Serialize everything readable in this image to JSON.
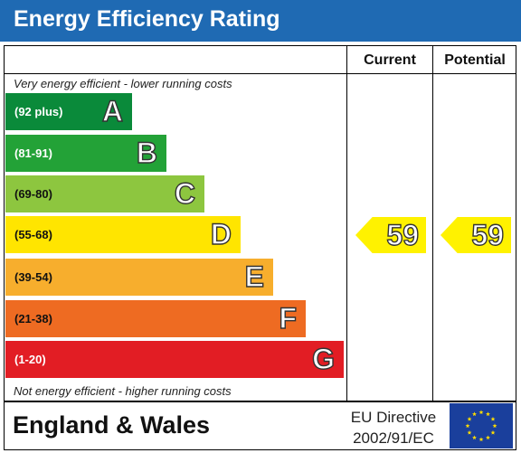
{
  "header": {
    "title": "Energy Efficiency Rating"
  },
  "columns": {
    "current": "Current",
    "potential": "Potential"
  },
  "notes": {
    "top": "Very energy efficient - lower running costs",
    "bottom": "Not energy efficient - higher running costs"
  },
  "chart_data": {
    "type": "bar",
    "title": "Energy Efficiency Rating",
    "categories": [
      "A",
      "B",
      "C",
      "D",
      "E",
      "F",
      "G"
    ],
    "bands": [
      {
        "letter": "A",
        "range": "(92 plus)",
        "color": "#0a8a3a",
        "text_color": "#ffffff"
      },
      {
        "letter": "B",
        "range": "(81-91)",
        "color": "#23a237",
        "text_color": "#ffffff"
      },
      {
        "letter": "C",
        "range": "(69-80)",
        "color": "#8dc63f",
        "text_color": "#111111"
      },
      {
        "letter": "D",
        "range": "(55-68)",
        "color": "#ffe500",
        "text_color": "#111111"
      },
      {
        "letter": "E",
        "range": "(39-54)",
        "color": "#f7ae2d",
        "text_color": "#111111"
      },
      {
        "letter": "F",
        "range": "(21-38)",
        "color": "#ee6b22",
        "text_color": "#111111"
      },
      {
        "letter": "G",
        "range": "(1-20)",
        "color": "#e21d24",
        "text_color": "#ffffff"
      }
    ],
    "current": {
      "value": 59,
      "band": "D"
    },
    "potential": {
      "value": 59,
      "band": "D"
    }
  },
  "footer": {
    "region": "England & Wales",
    "directive_line1": "EU Directive",
    "directive_line2": "2002/91/EC"
  },
  "colors": {
    "header_bg": "#1f6ab3",
    "arrow": "#fff200",
    "flag_bg": "#1a3f9c",
    "flag_stars": "#ffdd00"
  }
}
